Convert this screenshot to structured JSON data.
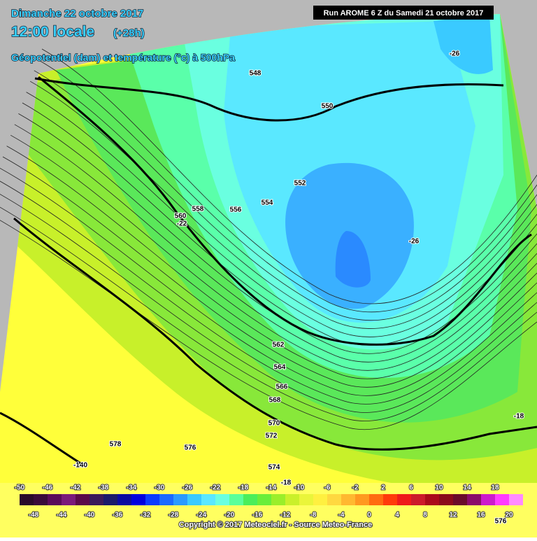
{
  "header": {
    "date": "Dimanche 22 octobre 2017",
    "time": "12:00 locale",
    "lead": "(+28h)",
    "subtitle": "Géopotentiel (dam) et température (°c) à 500hPa",
    "run": "Run AROME 6 Z du Samedi 21 octobre 2017"
  },
  "map": {
    "labels": [
      "548",
      "550",
      "552",
      "554",
      "556",
      "558",
      "560",
      "-22",
      "562",
      "564",
      "566",
      "568",
      "570",
      "572",
      "574",
      "576",
      "578",
      "-26",
      "-26",
      "-18",
      "-18",
      "-140",
      "576"
    ]
  },
  "legend": {
    "start": -50,
    "step": 2,
    "colors": [
      "#2a0a2a",
      "#3a0a3a",
      "#5a0a5a",
      "#7a1a7a",
      "#5a0a4a",
      "#3a1a5a",
      "#1a1a6a",
      "#0a0aa0",
      "#0000dd",
      "#0a3aff",
      "#1a6aff",
      "#2a9aff",
      "#3acaff",
      "#5ae8ff",
      "#6affe0",
      "#5aff9a",
      "#4aee5a",
      "#6aee3a",
      "#9aee2a",
      "#caf02a",
      "#eaf53a",
      "#fff040",
      "#ffd840",
      "#ffb830",
      "#ff9820",
      "#ff6a10",
      "#ff3a0a",
      "#ee1a1a",
      "#cc1a2a",
      "#aa0a1a",
      "#8a0a1a",
      "#6a0a2a",
      "#8a0a6a",
      "#cc1acc",
      "#ff3aff",
      "#ff8aff"
    ],
    "top_labels": [
      -50,
      -46,
      -42,
      -38,
      -34,
      -30,
      -26,
      -22,
      -18,
      -14,
      -10,
      -6,
      -2,
      2,
      6,
      10,
      14,
      18
    ],
    "bottom_labels": [
      -48,
      -44,
      -40,
      -36,
      -32,
      -28,
      -24,
      -20,
      -16,
      -12,
      -8,
      -4,
      0,
      4,
      8,
      12,
      16,
      20
    ]
  },
  "footer": {
    "copyright": "Copyright © 2017 Meteociel.fr - Source Meteo-France"
  }
}
